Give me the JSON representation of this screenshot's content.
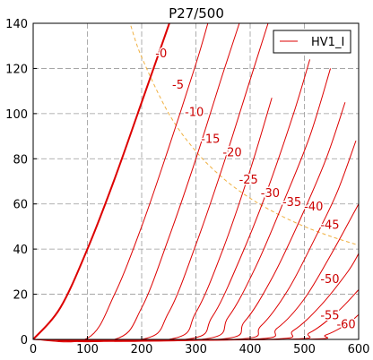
{
  "chart_data": {
    "type": "line",
    "title": "P27/500",
    "xlabel": "",
    "ylabel": "",
    "xlim": [
      0,
      600
    ],
    "ylim": [
      0,
      140
    ],
    "x_ticks": [
      0,
      100,
      200,
      300,
      400,
      500,
      600
    ],
    "y_ticks": [
      0,
      20,
      40,
      60,
      80,
      100,
      120,
      140
    ],
    "grid": true,
    "legend": {
      "position": "top-right",
      "entries": [
        "HV1_I"
      ]
    },
    "colors": {
      "curves": "#dd0000",
      "label_text": "#cc0000",
      "max_dissipation": "#f0b040",
      "grid": "#999999",
      "axis": "#000000"
    },
    "series": [
      {
        "label": "-0",
        "bold": true,
        "points": [
          [
            0,
            0
          ],
          [
            50,
            14
          ],
          [
            100,
            40
          ],
          [
            150,
            71
          ],
          [
            200,
            105
          ],
          [
            251,
            140
          ]
        ]
      },
      {
        "label": "-5",
        "points": [
          [
            0,
            0
          ],
          [
            100,
            0.5
          ],
          [
            150,
            20
          ],
          [
            200,
            50
          ],
          [
            250,
            85
          ],
          [
            300,
            122
          ],
          [
            322,
            140
          ]
        ]
      },
      {
        "label": "-10",
        "points": [
          [
            0,
            0
          ],
          [
            150,
            0
          ],
          [
            200,
            14
          ],
          [
            250,
            45
          ],
          [
            300,
            80
          ],
          [
            350,
            118
          ],
          [
            380,
            140
          ]
        ]
      },
      {
        "label": "-15",
        "points": [
          [
            0,
            0
          ],
          [
            200,
            0
          ],
          [
            250,
            12
          ],
          [
            300,
            42
          ],
          [
            350,
            77
          ],
          [
            400,
            115
          ],
          [
            433,
            140
          ]
        ]
      },
      {
        "label": "-20",
        "points": [
          [
            0,
            0
          ],
          [
            250,
            0
          ],
          [
            300,
            12
          ],
          [
            350,
            40
          ],
          [
            400,
            75
          ],
          [
            440,
            107
          ]
        ]
      },
      {
        "label": "-25",
        "points": [
          [
            0,
            0
          ],
          [
            280,
            0
          ],
          [
            330,
            10
          ],
          [
            380,
            35
          ],
          [
            430,
            65
          ],
          [
            480,
            100
          ],
          [
            510,
            124
          ]
        ]
      },
      {
        "label": "-30",
        "points": [
          [
            0,
            0
          ],
          [
            310,
            0
          ],
          [
            360,
            10
          ],
          [
            410,
            32
          ],
          [
            460,
            60
          ],
          [
            510,
            90
          ],
          [
            548,
            120
          ]
        ]
      },
      {
        "label": "-35",
        "points": [
          [
            0,
            0
          ],
          [
            340,
            0
          ],
          [
            390,
            8
          ],
          [
            440,
            27
          ],
          [
            490,
            52
          ],
          [
            540,
            80
          ],
          [
            575,
            105
          ]
        ]
      },
      {
        "label": "-40",
        "points": [
          [
            0,
            0
          ],
          [
            370,
            0
          ],
          [
            420,
            6
          ],
          [
            470,
            22
          ],
          [
            520,
            45
          ],
          [
            560,
            65
          ],
          [
            595,
            88
          ]
        ]
      },
      {
        "label": "-45",
        "points": [
          [
            0,
            0
          ],
          [
            400,
            0
          ],
          [
            450,
            5
          ],
          [
            500,
            18
          ],
          [
            550,
            38
          ],
          [
            600,
            60
          ]
        ]
      },
      {
        "label": "-50",
        "points": [
          [
            0,
            0
          ],
          [
            430,
            0
          ],
          [
            480,
            4
          ],
          [
            530,
            15
          ],
          [
            580,
            30
          ],
          [
            600,
            38
          ]
        ]
      },
      {
        "label": "-55",
        "points": [
          [
            0,
            0
          ],
          [
            460,
            0
          ],
          [
            510,
            3
          ],
          [
            560,
            12
          ],
          [
            600,
            22
          ]
        ]
      },
      {
        "label": "-60",
        "points": [
          [
            0,
            0
          ],
          [
            490,
            0
          ],
          [
            540,
            2
          ],
          [
            580,
            7
          ],
          [
            600,
            11
          ]
        ]
      }
    ],
    "max_dissipation_curve": [
      [
        180,
        138.9
      ],
      [
        200,
        125
      ],
      [
        250,
        100
      ],
      [
        300,
        83.3
      ],
      [
        350,
        71.4
      ],
      [
        400,
        62.5
      ],
      [
        450,
        55.6
      ],
      [
        500,
        50
      ],
      [
        550,
        45.5
      ],
      [
        600,
        41.7
      ]
    ],
    "curve_labels": [
      {
        "text": "-0",
        "x": 236,
        "y": 127
      },
      {
        "text": "-5",
        "x": 267,
        "y": 113
      },
      {
        "text": "-10",
        "x": 297,
        "y": 101
      },
      {
        "text": "-15",
        "x": 327,
        "y": 89
      },
      {
        "text": "-20",
        "x": 367,
        "y": 83
      },
      {
        "text": "-25",
        "x": 397,
        "y": 71
      },
      {
        "text": "-30",
        "x": 437,
        "y": 65
      },
      {
        "text": "-35",
        "x": 477,
        "y": 61
      },
      {
        "text": "-40",
        "x": 517,
        "y": 59
      },
      {
        "text": "-45",
        "x": 547,
        "y": 51
      },
      {
        "text": "-50",
        "x": 547,
        "y": 27
      },
      {
        "text": "-55",
        "x": 547,
        "y": 11
      },
      {
        "text": "-60",
        "x": 577,
        "y": 7
      }
    ]
  }
}
